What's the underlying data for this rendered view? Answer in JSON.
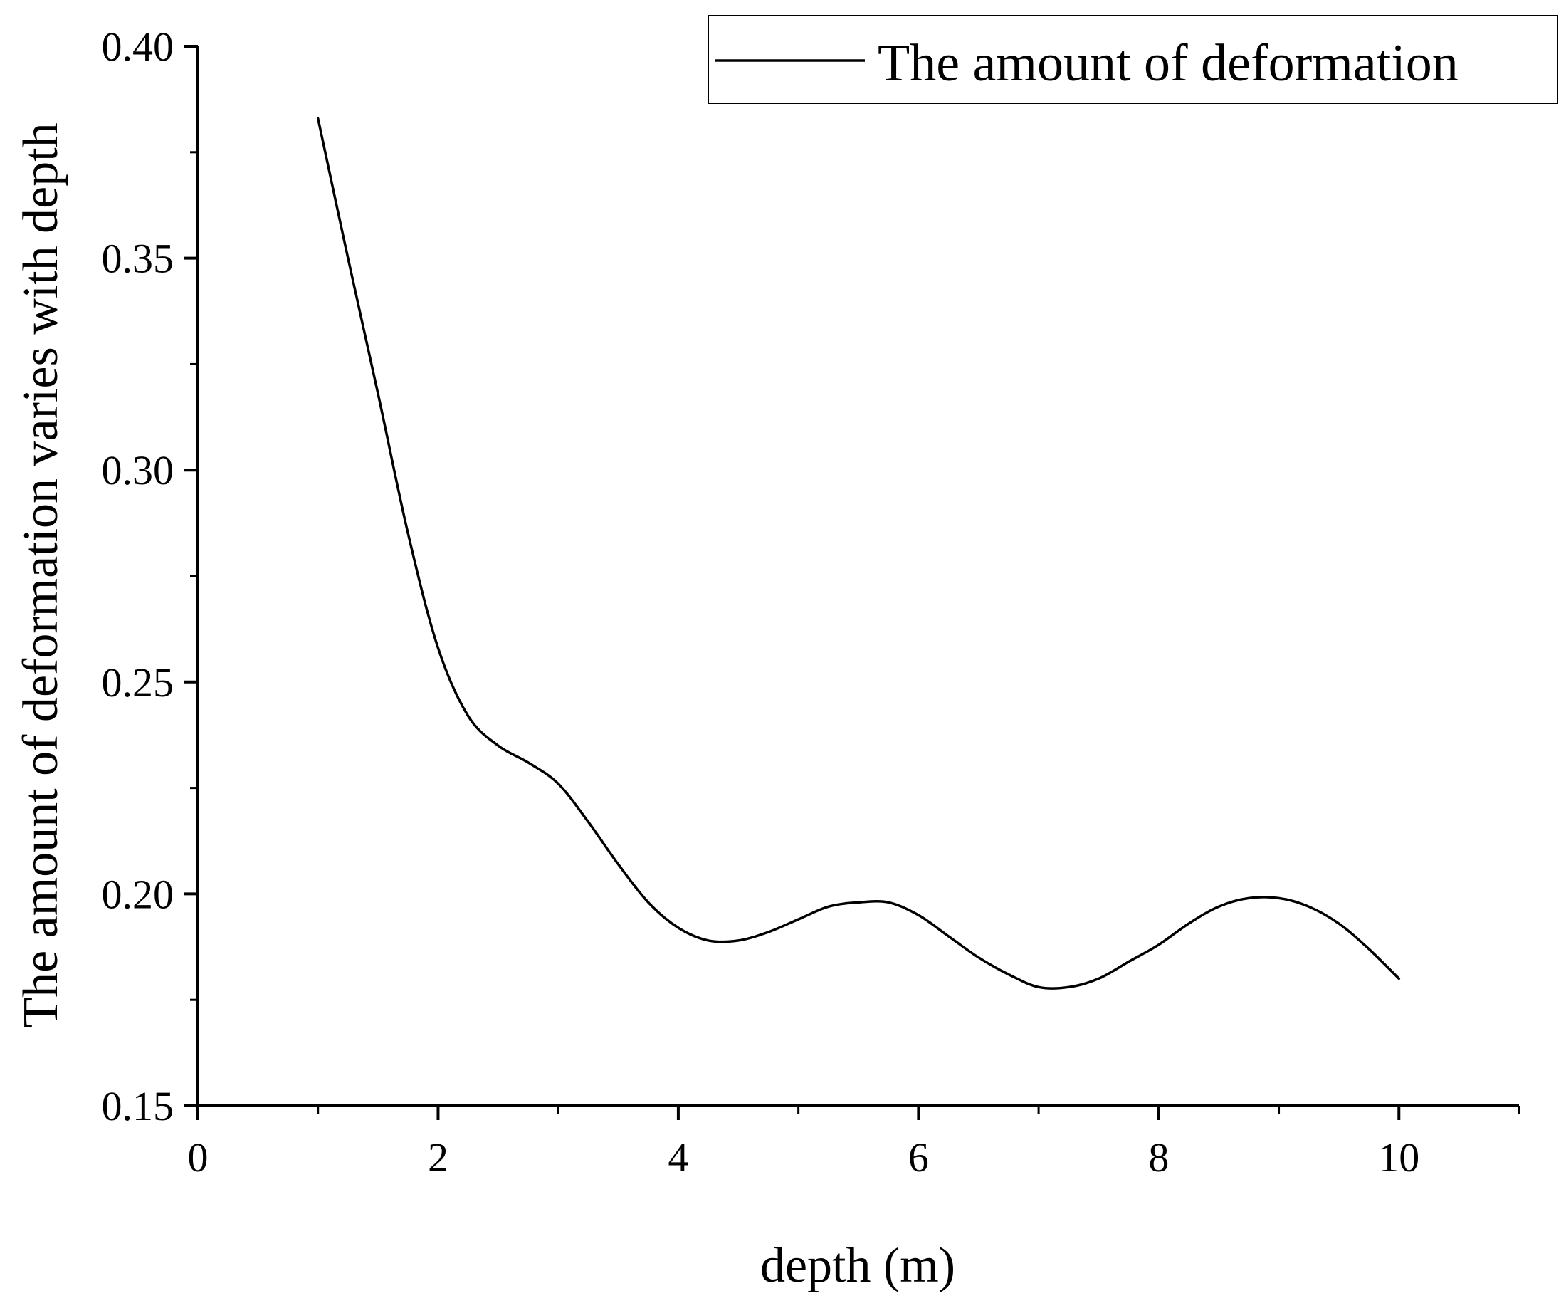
{
  "chart_data": {
    "type": "line",
    "xlabel": "depth (m)",
    "ylabel": "The amount of deformation varies with depth",
    "xlim": [
      0,
      11
    ],
    "ylim": [
      0.15,
      0.4
    ],
    "x_ticks": [
      "0",
      "2",
      "4",
      "6",
      "8",
      "10"
    ],
    "x_tick_values": [
      0,
      2,
      4,
      6,
      8,
      10
    ],
    "x_minor_tick_values": [
      1,
      3,
      5,
      7,
      9,
      11
    ],
    "y_ticks": [
      "0.15",
      "0.20",
      "0.25",
      "0.30",
      "0.35",
      "0.40"
    ],
    "y_tick_values": [
      0.15,
      0.2,
      0.25,
      0.3,
      0.35,
      0.4
    ],
    "y_minor_tick_values": [
      0.175,
      0.225,
      0.275,
      0.325,
      0.375
    ],
    "grid": false,
    "legend_position": "top-right",
    "series": [
      {
        "name": "The amount of deformation",
        "color": "#000000",
        "x": [
          1.0,
          1.25,
          1.5,
          1.75,
          2.0,
          2.25,
          2.5,
          2.75,
          3.0,
          3.25,
          3.5,
          3.75,
          4.0,
          4.25,
          4.5,
          4.75,
          5.0,
          5.25,
          5.5,
          5.75,
          6.0,
          6.25,
          6.5,
          6.75,
          7.0,
          7.25,
          7.5,
          7.75,
          8.0,
          8.25,
          8.5,
          8.75,
          9.0,
          9.25,
          9.5,
          9.75,
          10.0
        ],
        "y": [
          0.383,
          0.35,
          0.318,
          0.285,
          0.258,
          0.242,
          0.235,
          0.231,
          0.226,
          0.217,
          0.207,
          0.198,
          0.192,
          0.189,
          0.189,
          0.191,
          0.194,
          0.197,
          0.198,
          0.198,
          0.195,
          0.19,
          0.185,
          0.181,
          0.178,
          0.178,
          0.18,
          0.184,
          0.188,
          0.193,
          0.197,
          0.199,
          0.199,
          0.197,
          0.193,
          0.187,
          0.18
        ]
      }
    ]
  }
}
